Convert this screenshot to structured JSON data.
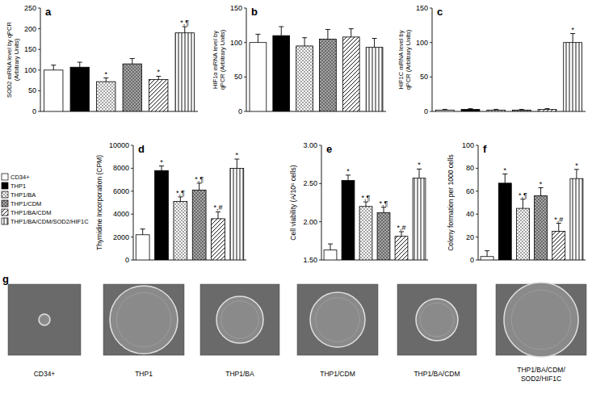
{
  "chart_data": [
    {
      "type": "bar",
      "label": "a",
      "y_label": [
        "SOD2 mRNA level by qPCR",
        "(Arbitrary Units)"
      ],
      "ylim": [
        0,
        250
      ],
      "yticks": [
        0,
        50,
        100,
        150,
        200,
        250
      ],
      "tick_labels": "y",
      "series": [
        {
          "color": "#ffffff",
          "values": [
            100
          ],
          "error": [
            12
          ]
        },
        {
          "color": "#000000",
          "values": [
            107
          ],
          "error": [
            12
          ]
        },
        {
          "color": "#ffffff",
          "marker": "dots",
          "values": [
            72
          ],
          "error": [
            9
          ],
          "annotation": "*"
        },
        {
          "color": "#a6a6a6",
          "marker": "dots",
          "values": [
            115
          ],
          "error": [
            13
          ]
        },
        {
          "color": "#ffffff",
          "marker": "diagonal",
          "values": [
            77
          ],
          "error": [
            8
          ],
          "annotation": "*"
        },
        {
          "color": "#ffffff",
          "marker": "vertical",
          "values": [
            190
          ],
          "error": [
            15
          ],
          "annotation": "*,¶"
        }
      ]
    },
    {
      "type": "bar",
      "label": "b",
      "y_label": [
        "HIF1α mRNA level by",
        "qPCR (Arbitrary Units)"
      ],
      "ylim": [
        0,
        150
      ],
      "yticks": [
        0,
        50,
        100,
        150
      ],
      "tick_labels": "y",
      "series": [
        {
          "color": "#ffffff",
          "values": [
            100
          ],
          "error": [
            12
          ]
        },
        {
          "color": "#000000",
          "values": [
            110
          ],
          "error": [
            13
          ]
        },
        {
          "color": "#ffffff",
          "marker": "dots",
          "values": [
            95
          ],
          "error": [
            12
          ]
        },
        {
          "color": "#a6a6a6",
          "marker": "dots",
          "values": [
            105
          ],
          "error": [
            14
          ]
        },
        {
          "color": "#ffffff",
          "marker": "diagonal",
          "values": [
            108
          ],
          "error": [
            12
          ]
        },
        {
          "color": "#ffffff",
          "marker": "vertical",
          "values": [
            93
          ],
          "error": [
            13
          ]
        }
      ]
    },
    {
      "type": "bar",
      "label": "c",
      "y_label": [
        "HIF1C mRNA level by",
        "qPCR (Arbitrary Units)"
      ],
      "ylim": [
        0,
        150
      ],
      "yticks": [
        0,
        50,
        100,
        150
      ],
      "tick_labels": "y",
      "series": [
        {
          "color": "#ffffff",
          "values": [
            2
          ],
          "error": [
            1
          ]
        },
        {
          "color": "#000000",
          "values": [
            3
          ],
          "error": [
            1
          ]
        },
        {
          "color": "#ffffff",
          "marker": "dots",
          "values": [
            2
          ],
          "error": [
            1
          ]
        },
        {
          "color": "#a6a6a6",
          "marker": "dots",
          "values": [
            2
          ],
          "error": [
            1
          ]
        },
        {
          "color": "#ffffff",
          "marker": "diagonal",
          "values": [
            3
          ],
          "error": [
            1
          ]
        },
        {
          "color": "#ffffff",
          "marker": "vertical",
          "values": [
            100
          ],
          "error": [
            13
          ],
          "annotation": "*"
        }
      ]
    },
    {
      "type": "bar",
      "label": "d",
      "y_label": [
        "Thymidine Incorporation (CPM)"
      ],
      "ylim": [
        0,
        10000
      ],
      "yticks": [
        0,
        2000,
        4000,
        6000,
        8000,
        10000
      ],
      "tick_labels": "y",
      "legend": "left",
      "series": [
        {
          "name": "CD34+",
          "color": "#ffffff",
          "values": [
            2200
          ],
          "error": [
            500
          ]
        },
        {
          "name": "THP1",
          "color": "#000000",
          "values": [
            7800
          ],
          "error": [
            400
          ],
          "annotation": "*"
        },
        {
          "name": "THP1/BA",
          "color": "#ffffff",
          "marker": "dots",
          "values": [
            5100
          ],
          "error": [
            400
          ],
          "annotation": "*,¶"
        },
        {
          "name": "THP1/CDM",
          "color": "#a6a6a6",
          "marker": "dots",
          "values": [
            6100
          ],
          "error": [
            600
          ],
          "annotation": "*,¶"
        },
        {
          "name": "THP1/BA/CDM",
          "color": "#ffffff",
          "marker": "diagonal",
          "values": [
            3600
          ],
          "error": [
            600
          ],
          "annotation": "*,#"
        },
        {
          "name": "THP1/BA/CDM/SOD2/HIF1C",
          "color": "#ffffff",
          "marker": "vertical",
          "values": [
            8000
          ],
          "error": [
            800
          ],
          "annotation": "*"
        }
      ]
    },
    {
      "type": "bar",
      "label": "e",
      "y_label": [
        "Cell viability (A/10⁶ cells)"
      ],
      "ylim": [
        1.5,
        3.0
      ],
      "yticks": [
        {
          "value": 1.5,
          "label": "1.50"
        },
        {
          "value": 2.0,
          "label": "2.00"
        },
        {
          "value": 2.5,
          "label": "2.50"
        },
        {
          "value": 3.0,
          "label": "3.00"
        }
      ],
      "tick_labels": "y",
      "series": [
        {
          "color": "#ffffff",
          "values": [
            1.63
          ],
          "error": [
            0.08
          ]
        },
        {
          "color": "#000000",
          "values": [
            2.54
          ],
          "error": [
            0.07
          ],
          "annotation": "*"
        },
        {
          "color": "#ffffff",
          "marker": "dots",
          "values": [
            2.2
          ],
          "error": [
            0.06
          ],
          "annotation": "*,¶"
        },
        {
          "color": "#a6a6a6",
          "marker": "dots",
          "values": [
            2.12
          ],
          "error": [
            0.07
          ],
          "annotation": "*,¶"
        },
        {
          "color": "#ffffff",
          "marker": "diagonal",
          "values": [
            1.81
          ],
          "error": [
            0.06
          ],
          "annotation": "*,#"
        },
        {
          "color": "#ffffff",
          "marker": "vertical",
          "values": [
            2.57
          ],
          "error": [
            0.12
          ],
          "annotation": "*"
        }
      ]
    },
    {
      "type": "bar",
      "label": "f",
      "y_label": [
        "Colony formation per 1000 cells"
      ],
      "ylim": [
        0,
        100
      ],
      "yticks": [
        0,
        20,
        40,
        60,
        80,
        100
      ],
      "tick_labels": "y",
      "series": [
        {
          "color": "#ffffff",
          "values": [
            3
          ],
          "error": [
            5
          ]
        },
        {
          "color": "#000000",
          "values": [
            67
          ],
          "error": [
            8
          ],
          "annotation": "*"
        },
        {
          "color": "#ffffff",
          "marker": "dots",
          "values": [
            45
          ],
          "error": [
            8
          ],
          "annotation": "*,¶"
        },
        {
          "color": "#a6a6a6",
          "marker": "dots",
          "values": [
            56
          ],
          "error": [
            7
          ],
          "annotation": "*"
        },
        {
          "color": "#ffffff",
          "marker": "diagonal",
          "values": [
            25
          ],
          "error": [
            7
          ],
          "annotation": "*,#"
        },
        {
          "color": "#ffffff",
          "marker": "vertical",
          "values": [
            71
          ],
          "error": [
            8
          ],
          "annotation": "*"
        }
      ]
    }
  ],
  "images": {
    "label": "g",
    "captions": [
      [
        "CD34+"
      ],
      [
        "THP1"
      ],
      [
        "THP1/BA"
      ],
      [
        "THP1/CDM"
      ],
      [
        "THP1/BA/CDM"
      ],
      [
        "THP1/BA/CDM/",
        "SOD2/HIF1C"
      ]
    ]
  }
}
